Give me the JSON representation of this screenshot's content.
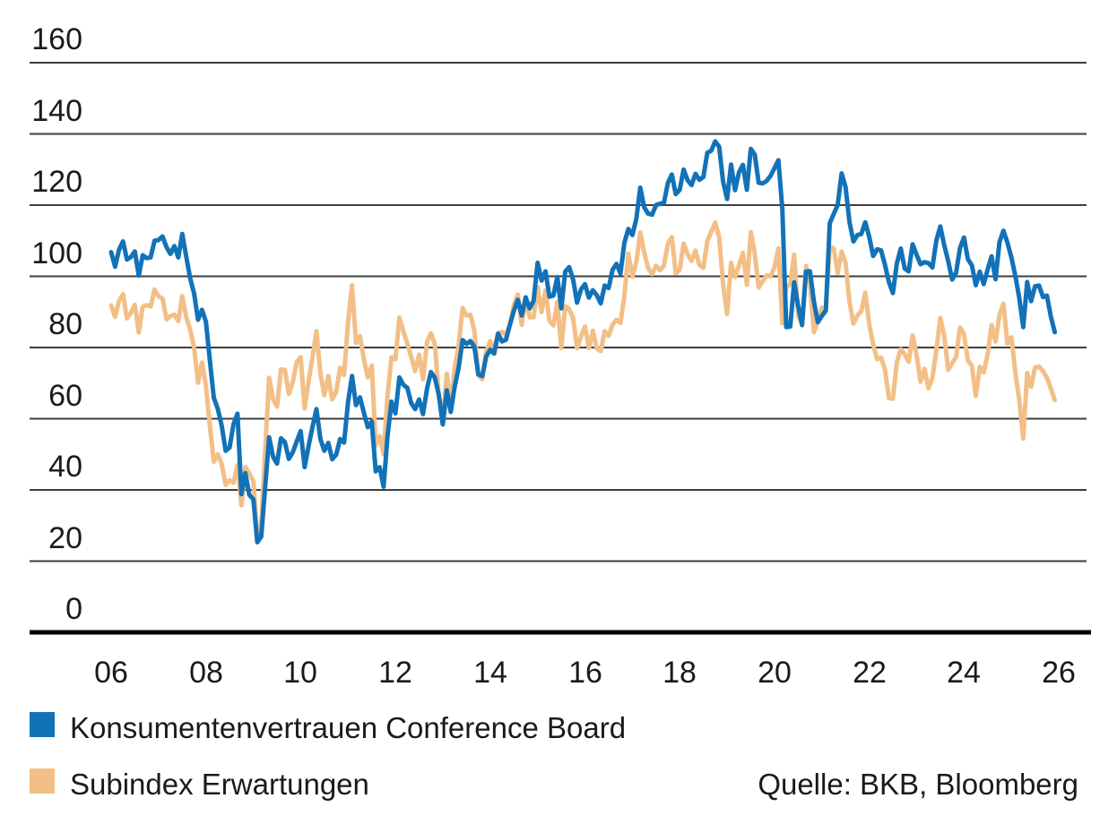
{
  "chart_data": {
    "type": "line",
    "title": "",
    "xlabel": "",
    "ylabel": "",
    "x_start": "2006-01",
    "frequency": "monthly",
    "xlim_years": [
      2006,
      2026
    ],
    "ylim": [
      0,
      160
    ],
    "grid": true,
    "legend_position": "bottom-left",
    "x_ticks": [
      "06",
      "08",
      "10",
      "12",
      "14",
      "16",
      "18",
      "20",
      "22",
      "24",
      "26"
    ],
    "y_ticks": [
      "160",
      "140",
      "120",
      "100",
      "80",
      "60",
      "40",
      "20",
      "0"
    ],
    "y_grid_values": [
      160,
      140,
      120,
      100,
      80,
      60,
      40,
      20
    ],
    "source": "Quelle: BKB, Bloomberg",
    "series": [
      {
        "name": "Konsumentenvertrauen Conference Board",
        "color": "#1272B8",
        "values": [
          106.8,
          102.7,
          107.5,
          109.8,
          104.7,
          105.4,
          107.0,
          100.2,
          105.9,
          105.1,
          105.3,
          110.0,
          110.2,
          111.2,
          108.2,
          106.3,
          108.5,
          105.3,
          111.9,
          105.6,
          99.5,
          95.2,
          87.8,
          90.6,
          87.3,
          76.4,
          65.9,
          62.8,
          58.1,
          51.0,
          51.9,
          58.5,
          61.4,
          38.8,
          44.7,
          38.6,
          37.4,
          25.3,
          26.9,
          40.8,
          54.8,
          49.3,
          47.4,
          54.5,
          53.4,
          48.7,
          50.6,
          53.6,
          56.5,
          46.4,
          52.3,
          57.7,
          62.7,
          54.3,
          51.0,
          53.2,
          48.6,
          49.9,
          54.3,
          53.3,
          64.8,
          72.0,
          63.8,
          66.0,
          61.7,
          57.6,
          59.2,
          45.2,
          46.4,
          40.9,
          55.2,
          64.8,
          61.5,
          71.6,
          69.5,
          68.7,
          64.4,
          62.7,
          65.4,
          61.3,
          68.4,
          73.1,
          71.5,
          66.7,
          58.4,
          68.0,
          61.9,
          69.0,
          74.3,
          82.1,
          81.0,
          81.8,
          80.2,
          72.4,
          72.0,
          77.5,
          79.4,
          78.3,
          83.9,
          81.7,
          82.2,
          86.4,
          90.3,
          93.4,
          89.0,
          94.1,
          91.0,
          93.1,
          103.8,
          98.8,
          101.4,
          94.3,
          94.6,
          99.8,
          91.0,
          101.3,
          102.6,
          99.1,
          92.6,
          96.3,
          97.8,
          94.0,
          96.1,
          94.7,
          92.4,
          97.4,
          96.7,
          101.8,
          103.5,
          100.8,
          109.4,
          113.3,
          111.6,
          116.1,
          124.9,
          119.4,
          117.6,
          117.3,
          120.0,
          120.4,
          120.6,
          126.2,
          128.6,
          123.1,
          124.3,
          130.0,
          127.0,
          125.6,
          128.8,
          127.1,
          127.9,
          134.7,
          135.3,
          137.9,
          136.4,
          126.6,
          121.7,
          131.4,
          124.2,
          129.2,
          131.3,
          124.3,
          135.8,
          134.2,
          126.3,
          126.1,
          126.8,
          128.2,
          130.4,
          132.6,
          118.8,
          85.7,
          85.9,
          98.3,
          91.7,
          86.3,
          101.3,
          101.4,
          92.9,
          87.1,
          88.9,
          90.4,
          114.9,
          117.5,
          120.0,
          128.9,
          125.1,
          115.2,
          109.8,
          111.6,
          111.9,
          115.2,
          111.1,
          105.7,
          107.6,
          107.3,
          103.2,
          98.4,
          95.3,
          103.6,
          107.8,
          102.2,
          101.4,
          109.0,
          106.0,
          103.4,
          104.0,
          103.7,
          102.5,
          110.1,
          114.0,
          108.7,
          104.3,
          99.1,
          101.0,
          108.0,
          110.9,
          104.8,
          103.1,
          97.5,
          101.3,
          97.8,
          101.9,
          105.6,
          99.2,
          109.6,
          112.8,
          109.5,
          105.3,
          100.1,
          93.9,
          85.7,
          98.4,
          93.0,
          97.2,
          97.4,
          94.2,
          94.6,
          88.7,
          84.3
        ]
      },
      {
        "name": "Subindex Erwartungen",
        "color": "#F2BF86",
        "values": [
          91.8,
          88.6,
          93.1,
          95.0,
          88.2,
          89.7,
          92.0,
          84.2,
          91.5,
          91.9,
          91.5,
          96.3,
          94.4,
          93.8,
          87.9,
          88.8,
          89.2,
          87.4,
          94.4,
          88.6,
          85.0,
          80.1,
          70.1,
          75.8,
          69.3,
          58.0,
          47.9,
          50.0,
          47.3,
          41.4,
          42.7,
          42.0,
          47.0,
          35.7,
          46.5,
          44.6,
          42.5,
          27.3,
          30.2,
          51.0,
          71.5,
          65.5,
          63.4,
          73.8,
          73.7,
          67.0,
          70.3,
          75.9,
          77.3,
          62.9,
          70.4,
          77.4,
          84.6,
          72.7,
          66.6,
          72.0,
          65.4,
          67.5,
          74.3,
          72.3,
          87.3,
          97.5,
          81.3,
          83.2,
          76.7,
          71.6,
          74.9,
          52.4,
          55.1,
          50.0,
          66.4,
          77.3,
          76.7,
          88.4,
          84.6,
          81.1,
          77.3,
          73.4,
          78.0,
          71.1,
          81.5,
          84.0,
          80.9,
          66.6,
          59.9,
          72.6,
          63.7,
          74.3,
          80.6,
          91.1,
          89.0,
          89.2,
          84.7,
          72.2,
          71.1,
          79.0,
          81.8,
          79.3,
          84.0,
          84.4,
          83.5,
          86.4,
          91.9,
          94.9,
          86.4,
          93.8,
          88.5,
          88.5,
          97.0,
          90.0,
          96.0,
          87.5,
          86.2,
          92.8,
          79.9,
          91.6,
          90.8,
          88.3,
          79.8,
          83.1,
          85.9,
          79.9,
          84.7,
          79.7,
          79.0,
          84.6,
          83.3,
          86.4,
          87.8,
          86.9,
          94.5,
          106.4,
          99.9,
          103.9,
          112.3,
          106.7,
          102.3,
          100.6,
          103.0,
          101.7,
          103.0,
          109.1,
          111.0,
          100.8,
          101.8,
          109.2,
          106.2,
          104.3,
          107.2,
          103.2,
          102.4,
          109.9,
          112.5,
          115.1,
          111.0,
          97.7,
          89.4,
          103.8,
          99.8,
          103.0,
          106.6,
          97.6,
          112.4,
          106.4,
          96.8,
          98.6,
          100.3,
          100.0,
          102.5,
          107.8,
          86.8,
          97.1,
          97.6,
          106.1,
          88.9,
          86.6,
          102.9,
          98.2,
          84.3,
          87.5,
          91.2,
          90.9,
          108.3,
          107.9,
          100.9,
          107.0,
          103.8,
          92.8,
          86.7,
          89.0,
          90.2,
          95.4,
          86.7,
          80.8,
          76.7,
          77.2,
          73.7,
          65.8,
          65.6,
          75.8,
          79.5,
          78.1,
          76.0,
          83.4,
          77.8,
          70.4,
          74.0,
          68.5,
          71.5,
          79.3,
          88.3,
          83.3,
          73.7,
          75.6,
          77.4,
          85.6,
          83.8,
          76.3,
          74.9,
          66.4,
          74.6,
          73.0,
          78.2,
          86.3,
          81.7,
          89.1,
          92.3,
          81.1,
          82.9,
          72.9,
          65.2,
          54.4,
          72.8,
          69.0,
          74.4,
          74.7,
          73.4,
          71.5,
          68.5,
          65.2
        ]
      }
    ]
  }
}
